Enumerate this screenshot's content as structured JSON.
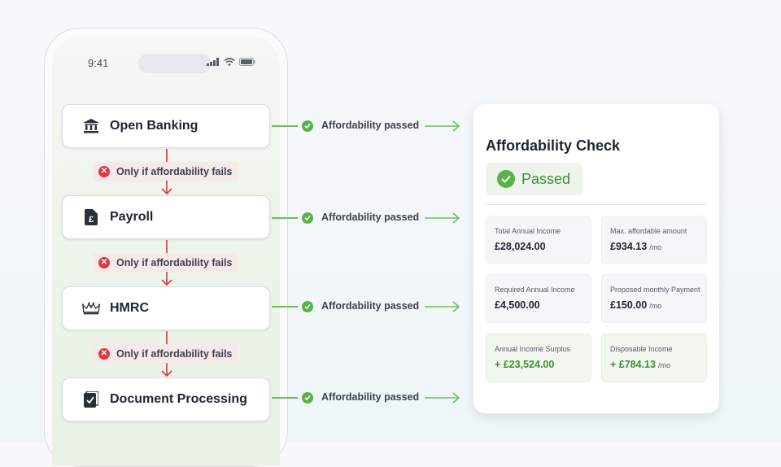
{
  "phone": {
    "time": "9:41"
  },
  "steps": [
    {
      "label": "Open Banking",
      "icon": "bank-icon"
    },
    {
      "label": "Payroll",
      "icon": "pound-document-icon"
    },
    {
      "label": "HMRC",
      "icon": "crown-icon"
    },
    {
      "label": "Document Processing",
      "icon": "document-check-icon"
    }
  ],
  "fallback_label": "Only if affordability fails",
  "connector_label": "Affordability passed",
  "result": {
    "title": "Affordability Check",
    "status": "Passed",
    "metrics": [
      {
        "label": "Total Annual Income",
        "value": "£28,024.00",
        "unit": ""
      },
      {
        "label": "Max. affordable amount",
        "value": "£934.13",
        "unit": "/mo"
      },
      {
        "label": "Required Annual Income",
        "value": "£4,500.00",
        "unit": ""
      },
      {
        "label": "Proposed monthly Payment",
        "value": "£150.00",
        "unit": "/mo"
      },
      {
        "label": "Annual Income Surplus",
        "value": "+ £23,524.00",
        "unit": ""
      },
      {
        "label": "Disposable Income",
        "value": "+ £784.13",
        "unit": "/mo"
      }
    ]
  },
  "colors": {
    "success": "#5bb14a",
    "error": "#e0383e",
    "text": "#1f2430"
  }
}
